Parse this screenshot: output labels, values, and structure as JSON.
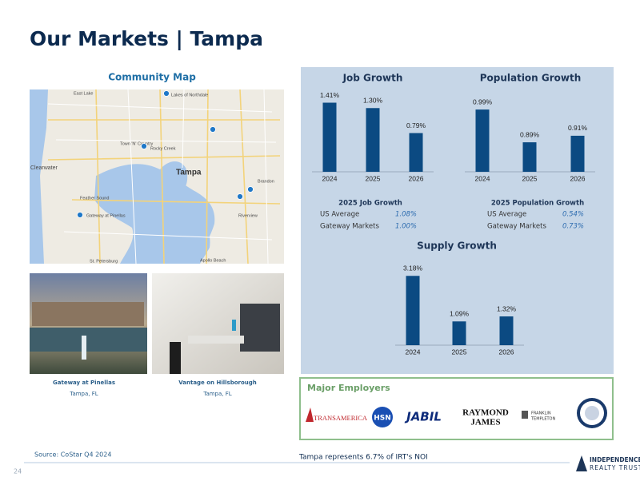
{
  "header": {
    "title": "Our Markets | Tampa"
  },
  "map": {
    "title": "Community Map",
    "labels": [
      "East Lake",
      "Lakes of Northdale",
      "Town 'N' Country",
      "Rocky Creek",
      "Tampa",
      "Clearwater",
      "Feather Sound",
      "Gateway at Pinellas",
      "Brandon",
      "Riverview",
      "Apollo Beach",
      "St. Petersburg"
    ]
  },
  "photos": [
    {
      "name": "Gateway at Pinellas",
      "location": "Tampa, FL"
    },
    {
      "name": "Vantage on Hillsborough",
      "location": "Tampa, FL"
    }
  ],
  "chart_data": [
    {
      "type": "bar",
      "title": "Job Growth",
      "categories": [
        "2024",
        "2025",
        "2026"
      ],
      "values": [
        1.41,
        1.3,
        0.79
      ],
      "value_labels": [
        "1.41%",
        "1.30%",
        "0.79%"
      ],
      "color": "#0b4a82",
      "ylim": [
        0,
        1.5
      ]
    },
    {
      "type": "bar",
      "title": "Population Growth",
      "categories": [
        "2024",
        "2025",
        "2026"
      ],
      "values": [
        0.99,
        0.89,
        0.91
      ],
      "value_labels": [
        "0.99%",
        "0.89%",
        "0.91%"
      ],
      "color": "#0b4a82",
      "ylim": [
        0.8,
        1.0
      ]
    },
    {
      "type": "bar",
      "title": "Supply Growth",
      "categories": [
        "2024",
        "2025",
        "2026"
      ],
      "values": [
        3.18,
        1.09,
        1.32
      ],
      "value_labels": [
        "3.18%",
        "1.09%",
        "1.32%"
      ],
      "color": "#0b4a82",
      "ylim": [
        0,
        3.3
      ]
    }
  ],
  "tables": [
    {
      "title": "2025 Job Growth",
      "rows": [
        [
          "US Average",
          "1.08%"
        ],
        [
          "Gateway Markets",
          "1.00%"
        ]
      ]
    },
    {
      "title": "2025 Population Growth",
      "rows": [
        [
          "US Average",
          "0.54%"
        ],
        [
          "Gateway Markets",
          "0.73%"
        ]
      ]
    }
  ],
  "employers": {
    "title": "Major Employers",
    "logos": [
      "TRANSAMERICA",
      "HSN",
      "JABIL",
      "RAYMOND",
      "JAMES",
      "FRANKLIN",
      "TEMPLETON"
    ]
  },
  "footer": {
    "source": "Source: CoStar Q4 2024",
    "note": "Tampa represents 6.7% of IRT's NOI",
    "page": "24",
    "logo": [
      "INDEPENDENCE",
      "REALTY TRUST"
    ]
  }
}
